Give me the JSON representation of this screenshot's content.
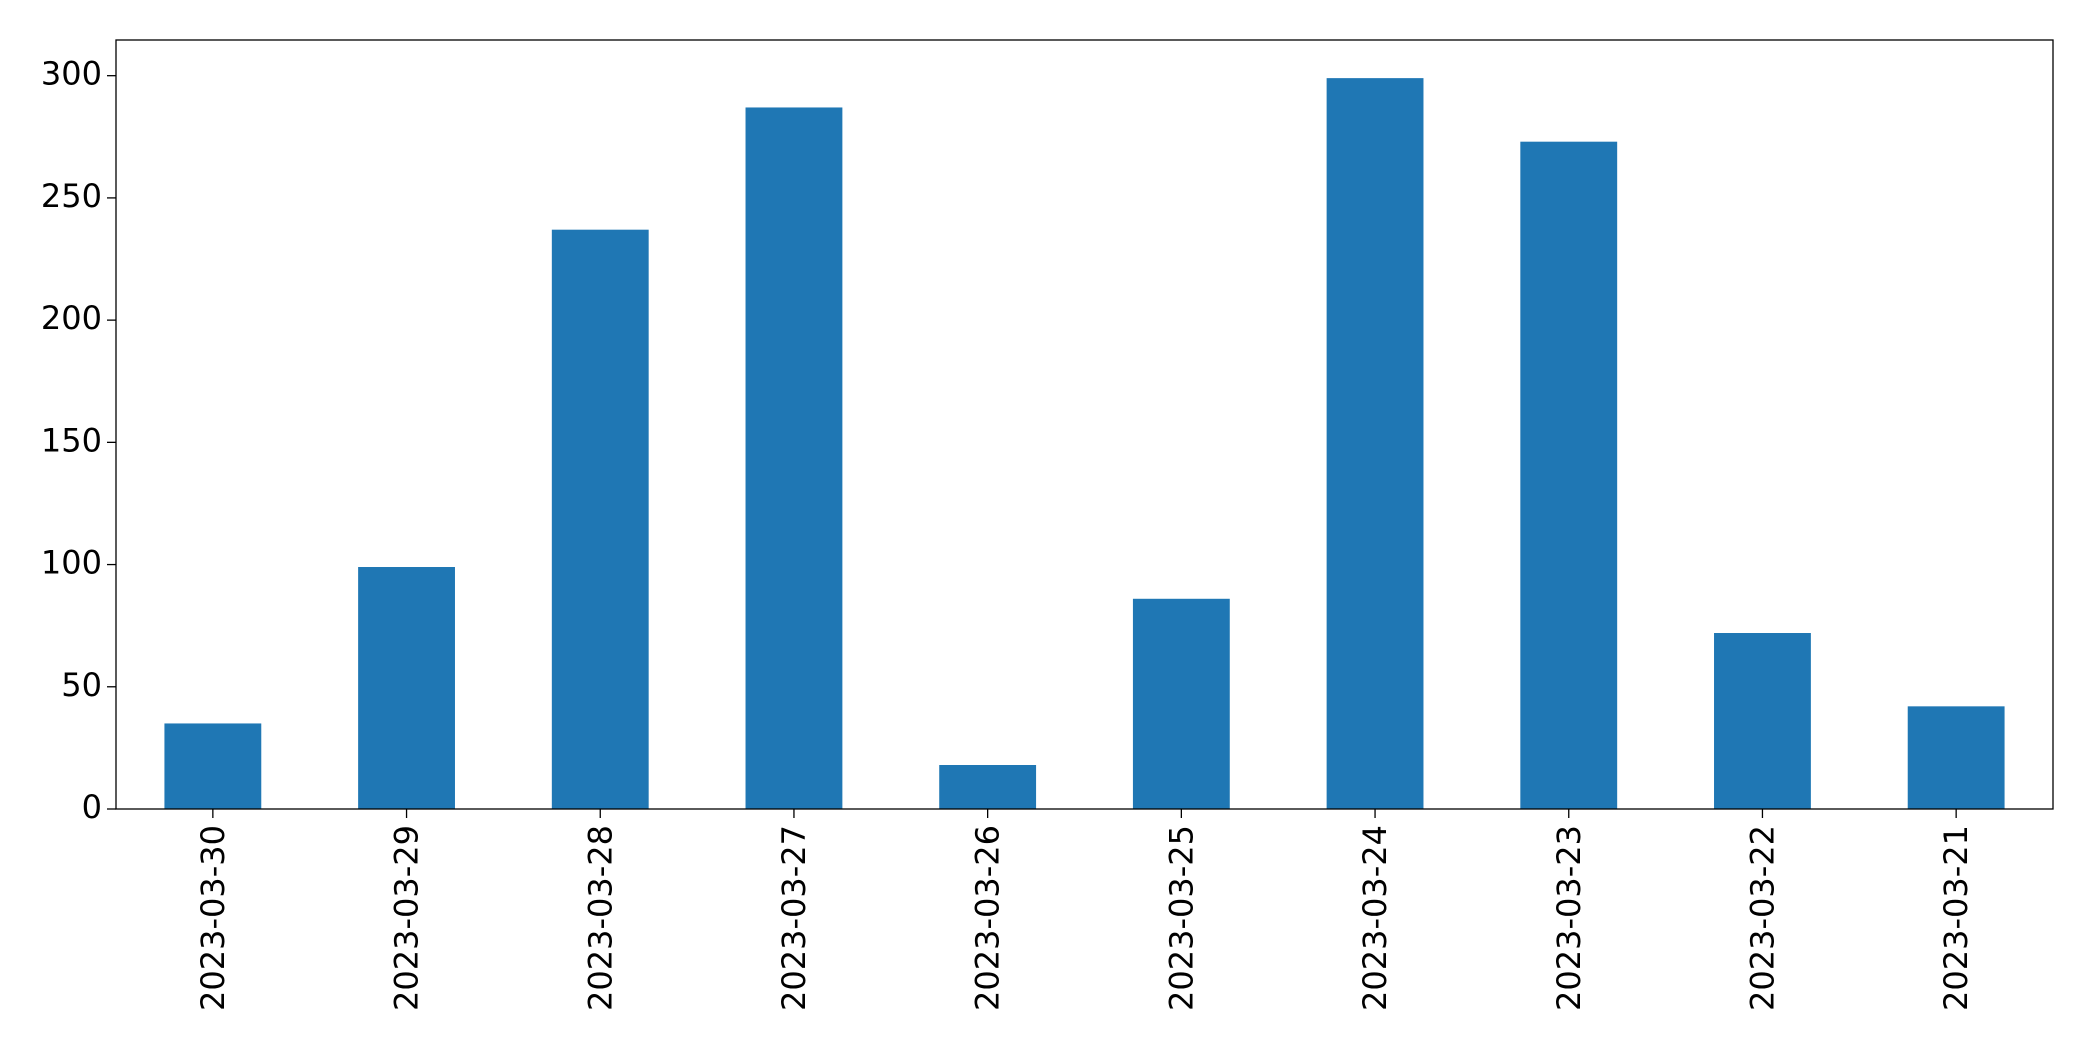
{
  "chart_data": {
    "type": "bar",
    "categories": [
      "2023-03-30",
      "2023-03-29",
      "2023-03-28",
      "2023-03-27",
      "2023-03-26",
      "2023-03-25",
      "2023-03-24",
      "2023-03-23",
      "2023-03-22",
      "2023-03-21"
    ],
    "values": [
      35,
      99,
      237,
      287,
      18,
      86,
      299,
      273,
      72,
      42
    ],
    "color": "#1f77b4",
    "ylim": [
      0,
      314.6
    ],
    "yticks": [
      0,
      50,
      100,
      150,
      200,
      250,
      300
    ],
    "grid": false
  }
}
